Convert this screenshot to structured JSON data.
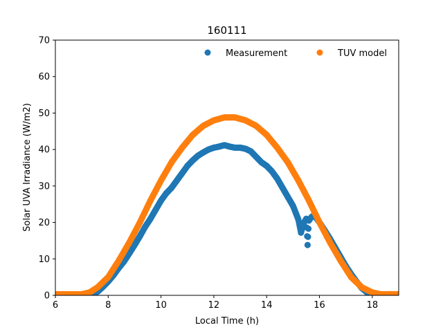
{
  "chart_data": {
    "type": "scatter",
    "title": "160111",
    "xlabel": "Local Time (h)",
    "ylabel": "Solar UVA Irradiance (W/m2)",
    "xlim": [
      6,
      19
    ],
    "ylim": [
      0,
      70
    ],
    "xticks": [
      6,
      8,
      10,
      12,
      14,
      16,
      18
    ],
    "yticks": [
      0,
      10,
      20,
      30,
      40,
      50,
      60,
      70
    ],
    "grid": false,
    "legend": "top-right",
    "series": [
      {
        "name": "Measurement",
        "color": "#1f77b4",
        "x": [
          6.0,
          7.0,
          7.4,
          7.6,
          7.8,
          8.0,
          8.2,
          8.4,
          8.6,
          8.8,
          9.0,
          9.2,
          9.4,
          9.6,
          9.8,
          10.0,
          10.2,
          10.4,
          10.6,
          10.8,
          11.0,
          11.2,
          11.4,
          11.6,
          11.8,
          12.0,
          12.2,
          12.4,
          12.6,
          12.8,
          13.0,
          13.2,
          13.4,
          13.6,
          13.8,
          14.0,
          14.2,
          14.4,
          14.6,
          14.8,
          15.0,
          15.2,
          15.3,
          15.4,
          15.5,
          15.55,
          15.6,
          15.7,
          15.8,
          15.9,
          16.0,
          16.2,
          16.4,
          16.6,
          16.8,
          17.0,
          17.2,
          17.4,
          17.6,
          17.8,
          18.0,
          18.2,
          18.4,
          19.0
        ],
        "y": [
          0.2,
          0.2,
          0.3,
          1.0,
          2.3,
          3.8,
          5.5,
          7.5,
          9.3,
          11.5,
          13.8,
          16.2,
          18.8,
          21.0,
          23.5,
          26.0,
          28.0,
          29.5,
          31.5,
          33.5,
          35.5,
          37.0,
          38.3,
          39.2,
          40.0,
          40.5,
          40.8,
          41.2,
          40.8,
          40.5,
          40.5,
          40.2,
          39.5,
          38.0,
          36.5,
          35.5,
          34.0,
          32.0,
          29.5,
          27.0,
          24.5,
          20.8,
          17.2,
          19.8,
          21.0,
          13.8,
          20.5,
          21.5,
          22.0,
          21.0,
          20.0,
          17.8,
          15.5,
          13.0,
          10.5,
          8.0,
          5.8,
          3.8,
          2.0,
          0.8,
          0.3,
          0.2,
          0.2,
          0.2
        ]
      },
      {
        "name": "TUV model",
        "color": "#ff7f0e",
        "x": [
          6.0,
          7.0,
          7.3,
          7.6,
          8.0,
          8.4,
          8.8,
          9.2,
          9.6,
          10.0,
          10.4,
          10.8,
          11.2,
          11.6,
          12.0,
          12.4,
          12.8,
          13.2,
          13.6,
          14.0,
          14.4,
          14.8,
          15.2,
          15.6,
          16.0,
          16.4,
          16.8,
          17.2,
          17.6,
          18.0,
          18.3,
          18.6,
          19.0
        ],
        "y": [
          0.3,
          0.3,
          0.8,
          2.2,
          5.0,
          9.5,
          14.5,
          20.0,
          26.0,
          31.5,
          36.5,
          40.5,
          44.0,
          46.5,
          48.0,
          48.8,
          48.8,
          48.0,
          46.5,
          44.0,
          40.5,
          36.5,
          31.5,
          26.0,
          20.0,
          14.5,
          9.5,
          5.0,
          2.2,
          0.8,
          0.3,
          0.3,
          0.3
        ]
      }
    ]
  }
}
